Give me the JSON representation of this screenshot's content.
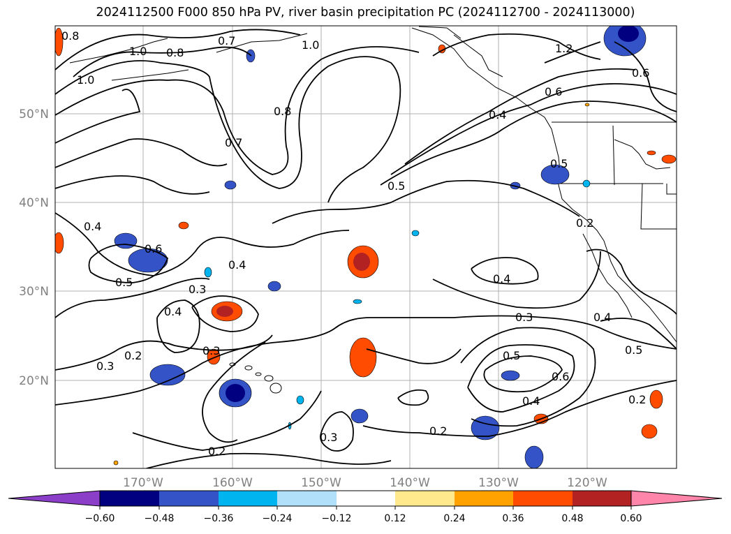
{
  "title": "2024112500 F000 850 hPa PV, river basin precipitation PC (2024112700 - 2024113000)",
  "map": {
    "lat_labels": [
      "50°N",
      "40°N",
      "30°N",
      "20°N"
    ],
    "lon_labels": [
      "170°W",
      "160°W",
      "150°W",
      "140°W",
      "130°W",
      "120°W"
    ],
    "contour_labels": [
      "0.8",
      "1.0",
      "0.8",
      "0.7",
      "1.0",
      "1.0",
      "1.2",
      "0.6",
      "0.6",
      "0.8",
      "0.4",
      "0.7",
      "0.5",
      "0.5",
      "0.2",
      "0.4",
      "0.6",
      "0.5",
      "0.4",
      "0.3",
      "0.4",
      "0.3",
      "0.2",
      "0.3",
      "0.4",
      "0.3",
      "0.5",
      "0.6",
      "0.4",
      "0.3",
      "0.2",
      "0.2",
      "0.4",
      "0.5",
      "0.2"
    ]
  },
  "colorbar": {
    "colors": [
      "#8b3fc8",
      "#9b35d0",
      "#000080",
      "#3353c6",
      "#00b4ef",
      "#b1e0fb",
      "#ffffff",
      "#ffe98c",
      "#ffa200",
      "#ff4c00",
      "#b22222",
      "#ff85aa",
      "#ff85aa"
    ],
    "tick_labels": [
      "−0.60",
      "−0.48",
      "−0.36",
      "−0.24",
      "−0.12",
      "0.12",
      "0.24",
      "0.36",
      "0.48",
      "0.60"
    ]
  }
}
